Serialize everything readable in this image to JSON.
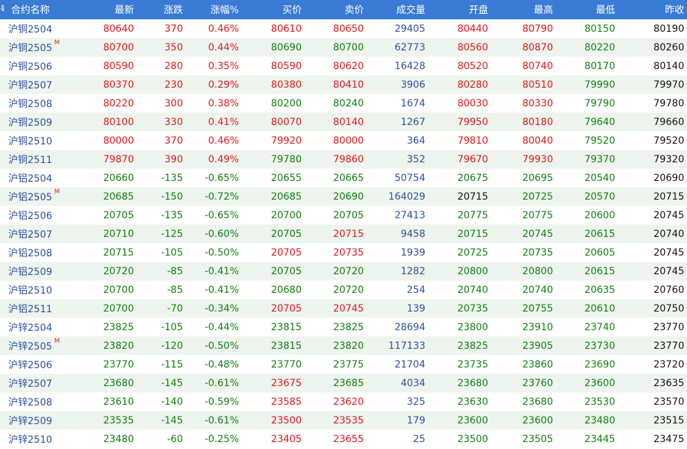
{
  "header": {
    "prefix": "号",
    "columns": [
      "合约名称",
      "最新",
      "涨跌",
      "涨幅%",
      "买价",
      "卖价",
      "成交量",
      "开盘",
      "最高",
      "最低",
      "昨收"
    ]
  },
  "colors": {
    "up": "#e0161b",
    "down": "#0f7d0f",
    "neutral": "#111111",
    "volume": "#2d4e9e",
    "name": "#2d4e9e",
    "header_bg": "#3a7bd5",
    "row_alt": "#eef5ee"
  },
  "rows": [
    {
      "name": "沪铜2504",
      "mark": "",
      "values": [
        "80640",
        "370",
        "0.46%",
        "80610",
        "80650",
        "29405",
        "80440",
        "80790",
        "80150",
        "80190"
      ],
      "colors": [
        "red",
        "red",
        "red",
        "red",
        "red",
        "blue",
        "red",
        "red",
        "green",
        "dark"
      ]
    },
    {
      "name": "沪铜2505",
      "mark": "M",
      "values": [
        "80700",
        "350",
        "0.44%",
        "80690",
        "80700",
        "62773",
        "80560",
        "80870",
        "80220",
        "80260"
      ],
      "colors": [
        "red",
        "red",
        "red",
        "green",
        "green",
        "blue",
        "red",
        "red",
        "green",
        "dark"
      ]
    },
    {
      "name": "沪铜2506",
      "mark": "",
      "values": [
        "80590",
        "280",
        "0.35%",
        "80590",
        "80620",
        "16428",
        "80520",
        "80740",
        "80170",
        "80140"
      ],
      "colors": [
        "red",
        "red",
        "red",
        "red",
        "red",
        "blue",
        "red",
        "red",
        "green",
        "dark"
      ]
    },
    {
      "name": "沪铜2507",
      "mark": "",
      "values": [
        "80370",
        "230",
        "0.29%",
        "80380",
        "80410",
        "3906",
        "80280",
        "80510",
        "79990",
        "79970"
      ],
      "colors": [
        "red",
        "red",
        "red",
        "red",
        "red",
        "blue",
        "red",
        "red",
        "green",
        "dark"
      ]
    },
    {
      "name": "沪铜2508",
      "mark": "",
      "values": [
        "80220",
        "300",
        "0.38%",
        "80200",
        "80240",
        "1674",
        "80030",
        "80330",
        "79790",
        "79780"
      ],
      "colors": [
        "red",
        "red",
        "red",
        "green",
        "green",
        "blue",
        "red",
        "red",
        "green",
        "dark"
      ]
    },
    {
      "name": "沪铜2509",
      "mark": "",
      "values": [
        "80100",
        "330",
        "0.41%",
        "80070",
        "80140",
        "1267",
        "79950",
        "80180",
        "79640",
        "79660"
      ],
      "colors": [
        "red",
        "red",
        "red",
        "red",
        "red",
        "blue",
        "red",
        "red",
        "green",
        "dark"
      ]
    },
    {
      "name": "沪铜2510",
      "mark": "",
      "values": [
        "80000",
        "370",
        "0.46%",
        "79920",
        "80000",
        "364",
        "79810",
        "80040",
        "79520",
        "79520"
      ],
      "colors": [
        "red",
        "red",
        "red",
        "red",
        "red",
        "blue",
        "red",
        "red",
        "green",
        "dark"
      ]
    },
    {
      "name": "沪铜2511",
      "mark": "",
      "values": [
        "79870",
        "390",
        "0.49%",
        "79780",
        "79860",
        "352",
        "79670",
        "79930",
        "79370",
        "79320"
      ],
      "colors": [
        "red",
        "red",
        "red",
        "green",
        "red",
        "blue",
        "red",
        "red",
        "green",
        "dark"
      ]
    },
    {
      "name": "沪铝2504",
      "mark": "",
      "values": [
        "20660",
        "-135",
        "-0.65%",
        "20655",
        "20665",
        "50754",
        "20675",
        "20695",
        "20540",
        "20690"
      ],
      "colors": [
        "green",
        "green",
        "green",
        "green",
        "green",
        "blue",
        "green",
        "green",
        "green",
        "dark"
      ]
    },
    {
      "name": "沪铝2505",
      "mark": "M",
      "values": [
        "20685",
        "-150",
        "-0.72%",
        "20685",
        "20690",
        "164029",
        "20715",
        "20725",
        "20570",
        "20715"
      ],
      "colors": [
        "green",
        "green",
        "green",
        "green",
        "green",
        "blue",
        "dark",
        "green",
        "green",
        "dark"
      ]
    },
    {
      "name": "沪铝2506",
      "mark": "",
      "values": [
        "20705",
        "-135",
        "-0.65%",
        "20700",
        "20705",
        "27413",
        "20775",
        "20775",
        "20600",
        "20745"
      ],
      "colors": [
        "green",
        "green",
        "green",
        "green",
        "green",
        "blue",
        "green",
        "green",
        "green",
        "dark"
      ]
    },
    {
      "name": "沪铝2507",
      "mark": "",
      "values": [
        "20710",
        "-125",
        "-0.60%",
        "20705",
        "20715",
        "9458",
        "20715",
        "20745",
        "20615",
        "20740"
      ],
      "colors": [
        "green",
        "green",
        "green",
        "green",
        "red",
        "blue",
        "green",
        "green",
        "green",
        "dark"
      ]
    },
    {
      "name": "沪铝2508",
      "mark": "",
      "values": [
        "20715",
        "-105",
        "-0.50%",
        "20705",
        "20735",
        "1939",
        "20725",
        "20735",
        "20605",
        "20745"
      ],
      "colors": [
        "green",
        "green",
        "green",
        "red",
        "red",
        "blue",
        "green",
        "green",
        "green",
        "dark"
      ]
    },
    {
      "name": "沪铝2509",
      "mark": "",
      "values": [
        "20720",
        "-85",
        "-0.41%",
        "20705",
        "20720",
        "1282",
        "20800",
        "20800",
        "20615",
        "20745"
      ],
      "colors": [
        "green",
        "green",
        "green",
        "green",
        "green",
        "blue",
        "green",
        "green",
        "green",
        "dark"
      ]
    },
    {
      "name": "沪铝2510",
      "mark": "",
      "values": [
        "20700",
        "-85",
        "-0.41%",
        "20680",
        "20720",
        "254",
        "20740",
        "20740",
        "20635",
        "20760"
      ],
      "colors": [
        "green",
        "green",
        "green",
        "green",
        "green",
        "blue",
        "green",
        "green",
        "green",
        "dark"
      ]
    },
    {
      "name": "沪铝2511",
      "mark": "",
      "values": [
        "20700",
        "-70",
        "-0.34%",
        "20705",
        "20745",
        "139",
        "20735",
        "20755",
        "20610",
        "20750"
      ],
      "colors": [
        "green",
        "green",
        "green",
        "red",
        "red",
        "blue",
        "green",
        "green",
        "green",
        "dark"
      ]
    },
    {
      "name": "沪锌2504",
      "mark": "",
      "values": [
        "23825",
        "-105",
        "-0.44%",
        "23815",
        "23825",
        "28694",
        "23800",
        "23910",
        "23740",
        "23770"
      ],
      "colors": [
        "green",
        "green",
        "green",
        "green",
        "green",
        "blue",
        "green",
        "green",
        "green",
        "dark"
      ]
    },
    {
      "name": "沪锌2505",
      "mark": "M",
      "values": [
        "23820",
        "-120",
        "-0.50%",
        "23815",
        "23820",
        "117133",
        "23825",
        "23905",
        "23730",
        "23770"
      ],
      "colors": [
        "green",
        "green",
        "green",
        "green",
        "green",
        "blue",
        "green",
        "green",
        "green",
        "dark"
      ]
    },
    {
      "name": "沪锌2506",
      "mark": "",
      "values": [
        "23770",
        "-115",
        "-0.48%",
        "23770",
        "23775",
        "21704",
        "23735",
        "23860",
        "23690",
        "23720"
      ],
      "colors": [
        "green",
        "green",
        "green",
        "green",
        "green",
        "blue",
        "green",
        "green",
        "green",
        "dark"
      ]
    },
    {
      "name": "沪锌2507",
      "mark": "",
      "values": [
        "23680",
        "-145",
        "-0.61%",
        "23675",
        "23685",
        "4034",
        "23680",
        "23760",
        "23600",
        "23635"
      ],
      "colors": [
        "green",
        "green",
        "green",
        "red",
        "green",
        "blue",
        "green",
        "green",
        "green",
        "dark"
      ]
    },
    {
      "name": "沪锌2508",
      "mark": "",
      "values": [
        "23610",
        "-140",
        "-0.59%",
        "23585",
        "23620",
        "325",
        "23630",
        "23680",
        "23530",
        "23570"
      ],
      "colors": [
        "green",
        "green",
        "green",
        "red",
        "red",
        "blue",
        "green",
        "green",
        "green",
        "dark"
      ]
    },
    {
      "name": "沪锌2509",
      "mark": "",
      "values": [
        "23535",
        "-145",
        "-0.61%",
        "23500",
        "23535",
        "179",
        "23600",
        "23600",
        "23480",
        "23515"
      ],
      "colors": [
        "green",
        "green",
        "green",
        "red",
        "red",
        "blue",
        "green",
        "green",
        "green",
        "dark"
      ]
    },
    {
      "name": "沪锌2510",
      "mark": "",
      "values": [
        "23480",
        "-60",
        "-0.25%",
        "23405",
        "23655",
        "25",
        "23500",
        "23505",
        "23445",
        "23475"
      ],
      "colors": [
        "green",
        "green",
        "green",
        "red",
        "red",
        "blue",
        "green",
        "green",
        "green",
        "dark"
      ]
    }
  ]
}
